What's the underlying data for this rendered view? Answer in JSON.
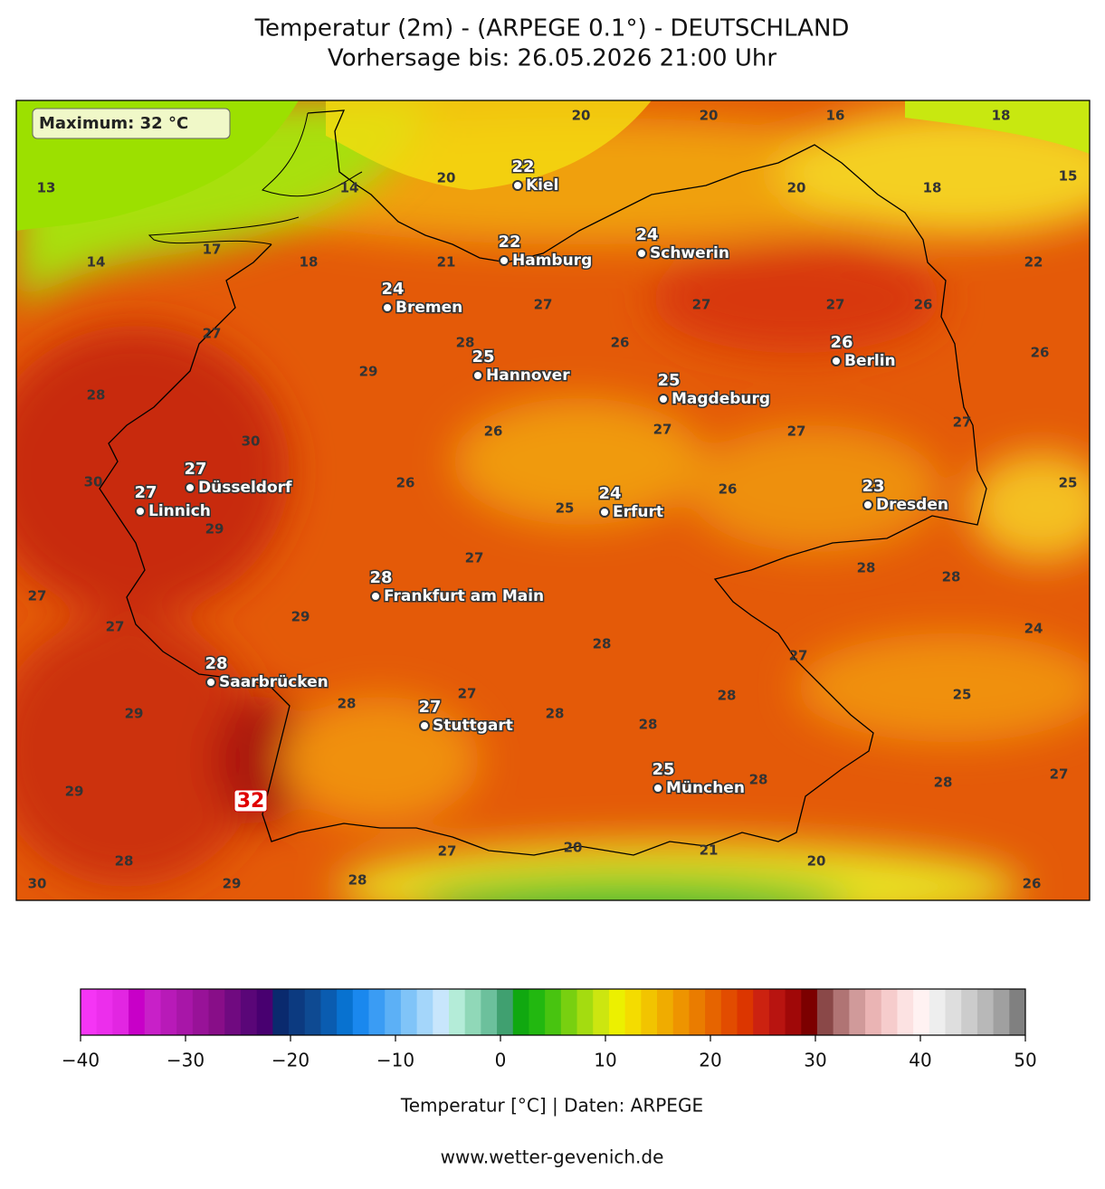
{
  "header": {
    "title": "Temperatur (2m) - (ARPEGE 0.1°) - DEUTSCHLAND",
    "subtitle": "Vorhersage bis: 26.05.2026 21:00 Uhr"
  },
  "map": {
    "max_label": "Maximum: 32 °C",
    "max_value": 32,
    "cities": [
      {
        "name": "Kiel",
        "value": 22
      },
      {
        "name": "Hamburg",
        "value": 22
      },
      {
        "name": "Schwerin",
        "value": 24
      },
      {
        "name": "Bremen",
        "value": 24
      },
      {
        "name": "Hannover",
        "value": 25
      },
      {
        "name": "Berlin",
        "value": 26
      },
      {
        "name": "Magdeburg",
        "value": 25
      },
      {
        "name": "Düsseldorf",
        "value": 27
      },
      {
        "name": "Linnich",
        "value": 27
      },
      {
        "name": "Erfurt",
        "value": 24
      },
      {
        "name": "Dresden",
        "value": 23
      },
      {
        "name": "Frankfurt am Main",
        "value": 28
      },
      {
        "name": "Saarbrücken",
        "value": 28
      },
      {
        "name": "Stuttgart",
        "value": 27
      },
      {
        "name": "München",
        "value": 25
      }
    ],
    "contour_labels": [
      20,
      20,
      16,
      18,
      13,
      14,
      20,
      20,
      18,
      15,
      14,
      17,
      18,
      21,
      22,
      27,
      27,
      27,
      26,
      27,
      28,
      26,
      26,
      29,
      28,
      27,
      27,
      27,
      26,
      30,
      30,
      26,
      26,
      25,
      25,
      29,
      27,
      28,
      28,
      27,
      29,
      27,
      24,
      28,
      27,
      27,
      28,
      28,
      25,
      29,
      28,
      28,
      28,
      28,
      27,
      29,
      27,
      20,
      21,
      20,
      28,
      30,
      29,
      28,
      26
    ]
  },
  "colorbar": {
    "lim": [
      -40,
      50
    ],
    "ticks": [
      {
        "value": -40,
        "label": "−40"
      },
      {
        "value": -30,
        "label": "−30"
      },
      {
        "value": -20,
        "label": "−20"
      },
      {
        "value": -10,
        "label": "−10"
      },
      0,
      10,
      20,
      30,
      40,
      50
    ],
    "colors": [
      "#f535f5",
      "#ec2eec",
      "#e226e2",
      "#c800c8",
      "#c820c8",
      "#b81ab8",
      "#a816a8",
      "#981298",
      "#880e88",
      "#700a80",
      "#5a0678",
      "#480070",
      "#0a2a6e",
      "#0c3a80",
      "#0e4a92",
      "#0a5cb0",
      "#0872d0",
      "#1a88ee",
      "#3a9cf4",
      "#5cb0f6",
      "#80c4f8",
      "#a4d6fa",
      "#c8e6fc",
      "#b4ecd8",
      "#90d8b8",
      "#6cc09c",
      "#40a070",
      "#10a810",
      "#22b810",
      "#48c410",
      "#78d010",
      "#a4dc10",
      "#cce610",
      "#ecf000",
      "#f4dc00",
      "#f2c400",
      "#f0ac00",
      "#ee9400",
      "#ea7c00",
      "#e66400",
      "#e24c00",
      "#dc3600",
      "#cc2210",
      "#b81410",
      "#a00808",
      "#7c0000",
      "#8a4848",
      "#b07474",
      "#d09a9a",
      "#eab4b4",
      "#f6cccc",
      "#fce2e2",
      "#fff2f2",
      "#eeeeee",
      "#dedede",
      "#cccccc",
      "#b8b8b8",
      "#a0a0a0",
      "#808080"
    ],
    "label": "Temperatur [°C] | Daten: ARPEGE"
  },
  "footer": "www.wetter-gevenich.de"
}
